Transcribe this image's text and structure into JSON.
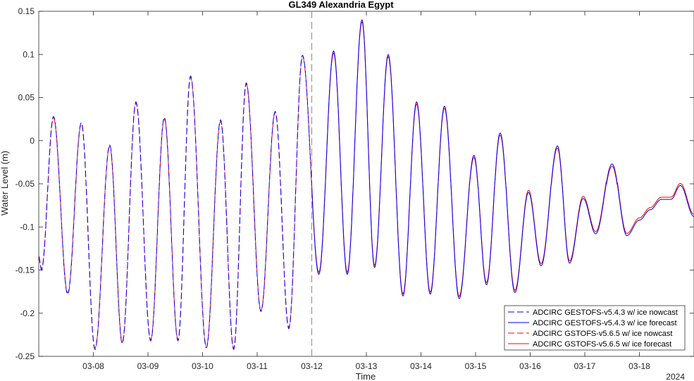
{
  "chart_data": {
    "type": "line",
    "title": "GL349 Alexandria Egypt",
    "xlabel": "Time",
    "ylabel": "Water Level (m)",
    "year_label": "2024",
    "x_unit": "day of March 2024",
    "xlim": [
      7,
      19
    ],
    "ylim": [
      -0.25,
      0.15
    ],
    "y_ticks": [
      -0.25,
      -0.2,
      -0.15,
      -0.1,
      -0.05,
      0,
      0.05,
      0.1,
      0.15
    ],
    "y_tick_labels": [
      "-0.25",
      "-0.2",
      "-0.15",
      "-0.1",
      "-0.05",
      "0",
      "0.05",
      "0.1",
      "0.15"
    ],
    "x_ticks": [
      8,
      9,
      10,
      11,
      12,
      13,
      14,
      15,
      16,
      17,
      18
    ],
    "x_tick_labels": [
      "03-08",
      "03-09",
      "03-10",
      "03-11",
      "03-12",
      "03-13",
      "03-14",
      "03-15",
      "03-16",
      "03-17",
      "03-18"
    ],
    "nowcast_forecast_split": 12,
    "grid": false,
    "legend_position": "bottom-right",
    "series": [
      {
        "name": "ADCIRC GESTOFS-v5.4.3 w/ ice nowcast",
        "color": "#0000ff",
        "style": "dashed",
        "x_range": [
          7,
          12
        ]
      },
      {
        "name": "ADCIRC GESTOFS-v5.4.3 w/ ice forecast",
        "color": "#0000ff",
        "style": "solid",
        "x_range": [
          12,
          19
        ]
      },
      {
        "name": "ADCIRC GSTOFS-v5.6.5 w/ ice nowcast",
        "color": "#ff0000",
        "style": "dashed",
        "x_range": [
          7,
          12
        ]
      },
      {
        "name": "ADCIRC GSTOFS-v5.6.5 w/ ice forecast",
        "color": "#ff0000",
        "style": "solid",
        "x_range": [
          12,
          19
        ]
      }
    ],
    "extrema": [
      [
        7.0,
        -0.135
      ],
      [
        7.05,
        -0.15
      ],
      [
        7.27,
        0.028
      ],
      [
        7.53,
        -0.178
      ],
      [
        7.78,
        0.021
      ],
      [
        8.03,
        -0.242
      ],
      [
        8.3,
        -0.005
      ],
      [
        8.53,
        -0.235
      ],
      [
        8.78,
        0.045
      ],
      [
        9.05,
        -0.232
      ],
      [
        9.3,
        0.027
      ],
      [
        9.55,
        -0.232
      ],
      [
        9.78,
        0.075
      ],
      [
        10.07,
        -0.24
      ],
      [
        10.33,
        0.024
      ],
      [
        10.57,
        -0.242
      ],
      [
        10.8,
        0.067
      ],
      [
        11.07,
        -0.198
      ],
      [
        11.33,
        0.034
      ],
      [
        11.58,
        -0.218
      ],
      [
        11.83,
        0.099
      ],
      [
        12.13,
        -0.155
      ],
      [
        12.4,
        0.104
      ],
      [
        12.65,
        -0.155
      ],
      [
        12.92,
        0.14
      ],
      [
        13.15,
        -0.147
      ],
      [
        13.4,
        0.1
      ],
      [
        13.67,
        -0.18
      ],
      [
        13.92,
        0.045
      ],
      [
        14.17,
        -0.178
      ],
      [
        14.43,
        0.04
      ],
      [
        14.7,
        -0.183
      ],
      [
        14.97,
        -0.017
      ],
      [
        15.2,
        -0.167
      ],
      [
        15.45,
        0.009
      ],
      [
        15.72,
        -0.176
      ],
      [
        15.97,
        -0.06
      ],
      [
        16.2,
        -0.145
      ],
      [
        16.5,
        -0.006
      ],
      [
        16.72,
        -0.142
      ],
      [
        16.97,
        -0.067
      ],
      [
        17.2,
        -0.108
      ],
      [
        17.5,
        -0.027
      ],
      [
        17.77,
        -0.11
      ],
      [
        18.0,
        -0.092
      ],
      [
        18.2,
        -0.08
      ],
      [
        18.4,
        -0.068
      ],
      [
        18.58,
        -0.068
      ],
      [
        18.75,
        -0.052
      ],
      [
        19.0,
        -0.088
      ]
    ]
  }
}
